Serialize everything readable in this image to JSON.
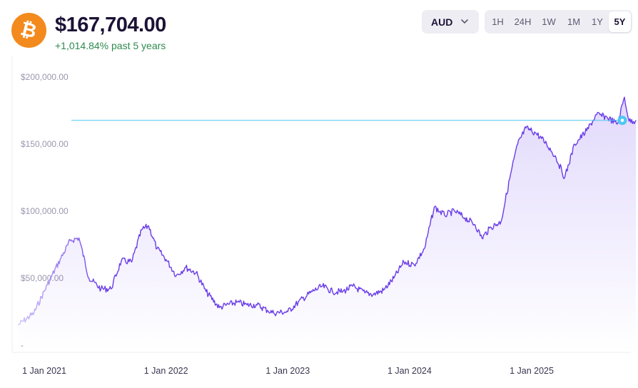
{
  "header": {
    "coin_icon": "bitcoin-icon",
    "coin_symbol": "₿",
    "price": "$167,704.00",
    "change": "+1,014.84% past 5 years"
  },
  "controls": {
    "currency": "AUD",
    "ranges": [
      "1H",
      "24H",
      "1W",
      "1M",
      "1Y",
      "5Y"
    ],
    "active_range": "5Y"
  },
  "colors": {
    "brand": "#f38a1d",
    "line": "#6a3de8",
    "current_line": "#4cc9f0",
    "positive": "#2e8a4f"
  },
  "chart_data": {
    "type": "area",
    "currency": "AUD",
    "ylim": [
      -25000,
      210000
    ],
    "yticks": [
      {
        "value": 200000,
        "label": "$200,000.00"
      },
      {
        "value": 150000,
        "label": "$150,000.00"
      },
      {
        "value": 100000,
        "label": "$100,000.00"
      },
      {
        "value": 50000,
        "label": "$50,000.00"
      },
      {
        "value": 0,
        "label": "-"
      }
    ],
    "xticks": [
      {
        "date": "2021-01-01",
        "label": "1 Jan 2021"
      },
      {
        "date": "2022-01-01",
        "label": "1 Jan 2022"
      },
      {
        "date": "2023-01-01",
        "label": "1 Jan 2023"
      },
      {
        "date": "2024-01-01",
        "label": "1 Jan 2024"
      },
      {
        "date": "2025-01-01",
        "label": "1 Jan 2025"
      }
    ],
    "current_value": 167704,
    "series": [
      {
        "x": [
          "2020-10-15",
          "2020-12-01",
          "2021-01-10",
          "2021-02-20",
          "2021-03-20",
          "2021-04-15",
          "2021-05-15",
          "2021-06-20",
          "2021-07-20",
          "2021-08-20",
          "2021-09-20",
          "2021-10-20",
          "2021-11-10",
          "2021-12-05",
          "2022-01-01",
          "2022-02-01",
          "2022-03-01",
          "2022-04-01",
          "2022-05-01",
          "2022-06-10",
          "2022-07-01",
          "2022-08-01",
          "2022-09-01",
          "2022-10-01",
          "2022-11-01",
          "2022-11-20",
          "2023-01-01",
          "2023-02-01",
          "2023-03-15",
          "2023-04-15",
          "2023-05-15",
          "2023-06-15",
          "2023-07-15",
          "2023-08-20",
          "2023-09-15",
          "2023-10-15",
          "2023-11-15",
          "2023-12-15",
          "2024-01-15",
          "2024-02-15",
          "2024-03-15",
          "2024-04-15",
          "2024-05-15",
          "2024-06-15",
          "2024-07-15",
          "2024-08-05",
          "2024-09-01",
          "2024-10-01",
          "2024-11-01",
          "2024-11-20",
          "2024-12-15",
          "2025-01-15",
          "2025-02-15",
          "2025-03-15",
          "2025-04-10",
          "2025-05-10",
          "2025-06-15",
          "2025-07-15",
          "2025-08-15",
          "2025-09-15",
          "2025-10-06",
          "2025-10-20",
          "2025-11-10"
        ],
        "y": [
          15000,
          24000,
          45000,
          65000,
          78000,
          80000,
          50000,
          42000,
          42000,
          63000,
          62000,
          86000,
          89000,
          72000,
          64000,
          52000,
          58000,
          54000,
          40000,
          28000,
          30000,
          32000,
          30000,
          30000,
          26000,
          24000,
          25000,
          32000,
          40000,
          44000,
          40000,
          40000,
          44000,
          39000,
          38000,
          41000,
          50000,
          62000,
          60000,
          72000,
          103000,
          97000,
          100000,
          95000,
          90000,
          80000,
          88000,
          92000,
          130000,
          150000,
          162000,
          158000,
          150000,
          140000,
          125000,
          150000,
          160000,
          172000,
          170000,
          165000,
          185000,
          167000,
          167704
        ]
      }
    ]
  }
}
